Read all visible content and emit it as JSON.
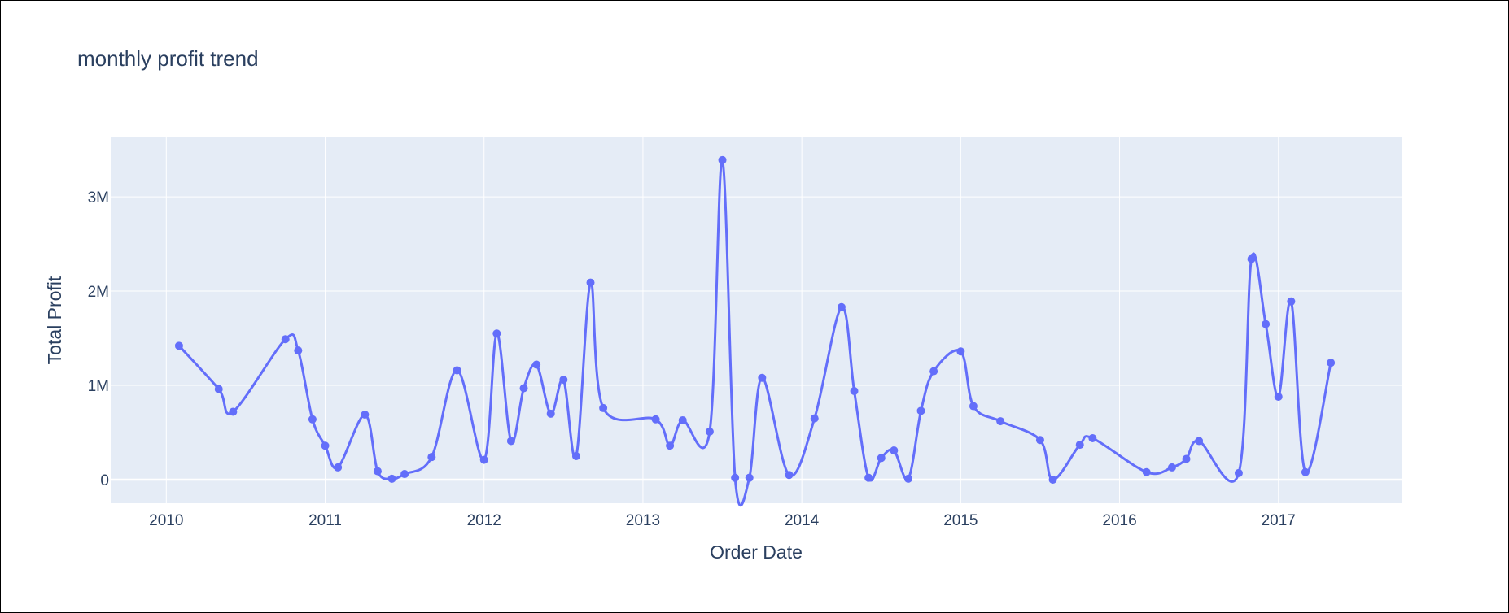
{
  "chart_data": {
    "type": "line",
    "title": "monthly profit trend",
    "xlabel": "Order Date",
    "ylabel": "Total Profit",
    "xlim": [
      2009.65,
      2017.78
    ],
    "ylim": [
      -250000,
      3630000
    ],
    "x_ticks": [
      {
        "value": 2010,
        "label": "2010"
      },
      {
        "value": 2011,
        "label": "2011"
      },
      {
        "value": 2012,
        "label": "2012"
      },
      {
        "value": 2013,
        "label": "2013"
      },
      {
        "value": 2014,
        "label": "2014"
      },
      {
        "value": 2015,
        "label": "2015"
      },
      {
        "value": 2016,
        "label": "2016"
      },
      {
        "value": 2017,
        "label": "2017"
      }
    ],
    "y_ticks": [
      {
        "value": 0,
        "label": "0"
      },
      {
        "value": 1000000,
        "label": "1M"
      },
      {
        "value": 2000000,
        "label": "2M"
      },
      {
        "value": 3000000,
        "label": "3M"
      }
    ],
    "grid": true,
    "line_shape": "spline",
    "markers": true,
    "colors": {
      "line": "#636efa",
      "plot_bg": "#e5ecf6",
      "grid": "#ffffff",
      "text": "#2a3f5f"
    },
    "series": [
      {
        "x": [
          2010.08,
          2010.33,
          2010.42,
          2010.75,
          2010.83,
          2010.92,
          2011.0,
          2011.08,
          2011.25,
          2011.33,
          2011.42,
          2011.5,
          2011.67,
          2011.83,
          2012.0,
          2012.08,
          2012.17,
          2012.25,
          2012.33,
          2012.42,
          2012.5,
          2012.58,
          2012.67,
          2012.75,
          2013.08,
          2013.17,
          2013.25,
          2013.42,
          2013.5,
          2013.58,
          2013.67,
          2013.75,
          2013.92,
          2014.08,
          2014.25,
          2014.33,
          2014.42,
          2014.5,
          2014.58,
          2014.67,
          2014.75,
          2014.83,
          2015.0,
          2015.08,
          2015.25,
          2015.5,
          2015.58,
          2015.75,
          2015.83,
          2016.17,
          2016.33,
          2016.42,
          2016.5,
          2016.75,
          2016.83,
          2016.92,
          2017.0,
          2017.08,
          2017.17,
          2017.33
        ],
        "y": [
          1420000,
          960000,
          720000,
          1490000,
          1370000,
          640000,
          360000,
          130000,
          690000,
          90000,
          10000,
          60000,
          240000,
          1160000,
          210000,
          1550000,
          410000,
          970000,
          1220000,
          700000,
          1060000,
          250000,
          2090000,
          760000,
          640000,
          360000,
          630000,
          510000,
          3390000,
          20000,
          20000,
          1080000,
          50000,
          650000,
          1830000,
          940000,
          20000,
          230000,
          310000,
          10000,
          730000,
          1150000,
          1360000,
          780000,
          620000,
          420000,
          0,
          370000,
          440000,
          80000,
          130000,
          220000,
          410000,
          70000,
          2340000,
          1650000,
          880000,
          1890000,
          80000,
          1240000
        ]
      }
    ]
  }
}
